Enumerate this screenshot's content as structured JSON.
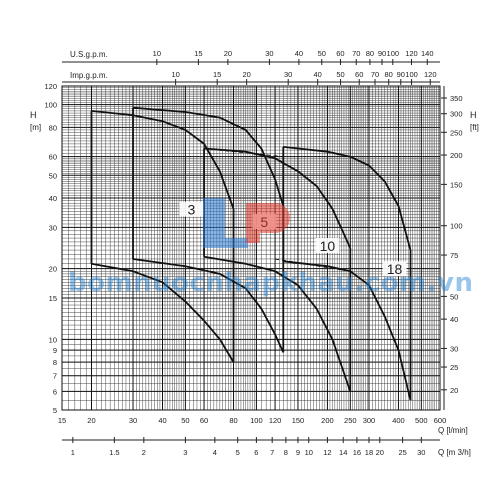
{
  "chart_data": {
    "type": "line",
    "title": "",
    "xlabel": "Q [l/min]",
    "xlabel2": "Q [m 3/h]",
    "top_axis1_label": "U.S.g.p.m.",
    "top_axis2_label": "Imp.g.p.m.",
    "ylabel_left_main": "H",
    "ylabel_left_unit": "[m]",
    "ylabel_right_main": "H",
    "ylabel_right_unit": "[ft]",
    "x_scale": "log",
    "y_scale": "log",
    "xlim": [
      15,
      600
    ],
    "ylim": [
      5,
      120
    ],
    "grid": true,
    "y_ticks_m": [
      5,
      6,
      7,
      8,
      9,
      10,
      15,
      20,
      30,
      40,
      50,
      60,
      80,
      100,
      120
    ],
    "x_ticks_lmin": [
      15,
      20,
      30,
      40,
      50,
      60,
      80,
      100,
      120,
      150,
      200,
      250,
      300,
      400,
      500,
      600
    ],
    "x_ticks_m3h": [
      1,
      1.5,
      2,
      3,
      4,
      5,
      6,
      7,
      8,
      9,
      10,
      12,
      14,
      16,
      18,
      20,
      25,
      30
    ],
    "x_ticks_usgpm": [
      10,
      15,
      20,
      30,
      40,
      50,
      60,
      70,
      80,
      90,
      100,
      120,
      140
    ],
    "x_ticks_impgpm": [
      10,
      15,
      20,
      30,
      40,
      50,
      60,
      70,
      80,
      90,
      100,
      120
    ],
    "y_ticks_ft": [
      20,
      25,
      30,
      40,
      50,
      75,
      100,
      150,
      200,
      250,
      300,
      350
    ],
    "series": [
      {
        "name": "3",
        "upper": [
          [
            20,
            94
          ],
          [
            30,
            90
          ],
          [
            40,
            85
          ],
          [
            50,
            78
          ],
          [
            60,
            68
          ],
          [
            70,
            52
          ],
          [
            80,
            36
          ]
        ],
        "lower": [
          [
            20,
            21
          ],
          [
            30,
            19.5
          ],
          [
            40,
            17.5
          ],
          [
            50,
            14.5
          ],
          [
            60,
            12
          ],
          [
            70,
            10
          ],
          [
            80,
            8
          ]
        ],
        "upper_q": 20,
        "lower_q": 80
      },
      {
        "name": "5",
        "upper": [
          [
            30,
            97
          ],
          [
            50,
            93
          ],
          [
            70,
            88
          ],
          [
            90,
            78
          ],
          [
            105,
            65
          ],
          [
            120,
            48
          ],
          [
            130,
            37
          ]
        ],
        "lower": [
          [
            30,
            22
          ],
          [
            50,
            20.5
          ],
          [
            70,
            19
          ],
          [
            90,
            16.5
          ],
          [
            105,
            13.5
          ],
          [
            120,
            10.5
          ],
          [
            130,
            8.8
          ]
        ],
        "upper_q": 30,
        "lower_q": 130
      },
      {
        "name": "10",
        "upper": [
          [
            60,
            65
          ],
          [
            90,
            63
          ],
          [
            120,
            59
          ],
          [
            150,
            52
          ],
          [
            180,
            45
          ],
          [
            210,
            36
          ],
          [
            250,
            24.5
          ]
        ],
        "lower": [
          [
            60,
            22.5
          ],
          [
            90,
            21
          ],
          [
            120,
            19.5
          ],
          [
            150,
            17
          ],
          [
            180,
            13.5
          ],
          [
            210,
            10
          ],
          [
            250,
            6
          ]
        ],
        "upper_q": 60,
        "lower_q": 250
      },
      {
        "name": "18",
        "upper": [
          [
            130,
            66
          ],
          [
            200,
            63
          ],
          [
            250,
            60
          ],
          [
            300,
            55
          ],
          [
            350,
            47
          ],
          [
            400,
            37
          ],
          [
            450,
            24
          ]
        ],
        "lower": [
          [
            130,
            21.5
          ],
          [
            200,
            20.5
          ],
          [
            250,
            19.5
          ],
          [
            300,
            17
          ],
          [
            350,
            12.5
          ],
          [
            400,
            9
          ],
          [
            450,
            5.5
          ]
        ],
        "upper_q": 130,
        "lower_q": 450
      }
    ],
    "series_labels_pos": [
      {
        "name": "3",
        "q": 53,
        "h": 35
      },
      {
        "name": "5",
        "q": 108,
        "h": 31
      },
      {
        "name": "10",
        "q": 200,
        "h": 24.5
      },
      {
        "name": "18",
        "q": 385,
        "h": 19.5
      }
    ],
    "dashed_limits": [
      {
        "series": "3",
        "points": [
          [
            30,
            60
          ],
          [
            30,
            22
          ]
        ]
      },
      {
        "series": "5",
        "points": [
          [
            60,
            55
          ],
          [
            60,
            22.5
          ]
        ]
      },
      {
        "series": "10",
        "points": [
          [
            60,
            65
          ],
          [
            130,
            60
          ]
        ]
      },
      {
        "series": "18",
        "points": [
          [
            120,
            22
          ],
          [
            250,
            19.5
          ]
        ]
      }
    ]
  },
  "watermark": "bomnuocnhapkhau.com.vn",
  "colors": {
    "grid": "#222222",
    "curve": "#111111",
    "watermark": "#1f7fd1",
    "logo_red": "#e23a2e",
    "logo_blue": "#2a7bd6"
  }
}
